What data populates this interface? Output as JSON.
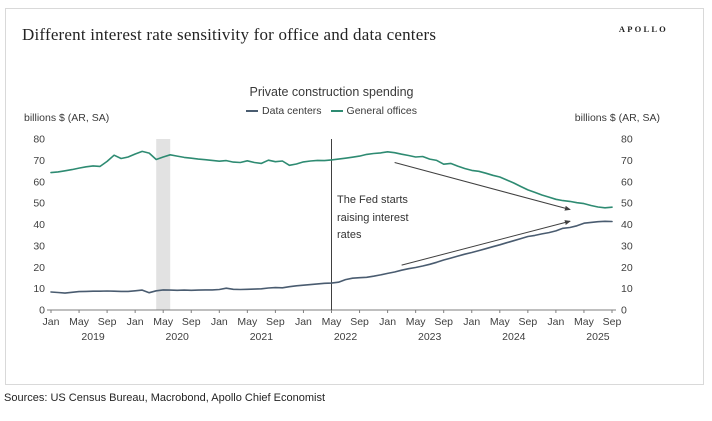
{
  "brand": "APOLLO",
  "page_title": "Different interest rate sensitivity for office and data centers",
  "sources": "Sources: US Census Bureau, Macrobond, Apollo Chief Economist",
  "colors": {
    "data_centers": "#4a5c70",
    "general_offices": "#2e8b72",
    "recession_band": "#e2e2e2",
    "axis": "#7f7f7f",
    "annotation_ink": "#404040"
  },
  "chart_data": {
    "type": "line",
    "title": "Private construction spending",
    "y_axis_label_left": "billions $ (AR, SA)",
    "y_axis_label_right": "billions $ (AR, SA)",
    "ylim": [
      0,
      80
    ],
    "y_ticks": [
      0,
      10,
      20,
      30,
      40,
      50,
      60,
      70,
      80
    ],
    "x_range": "Jan 2019 - Sep 2025",
    "month_tick_labels": [
      "Jan",
      "May",
      "Sep"
    ],
    "years": [
      "2019",
      "2020",
      "2021",
      "2022",
      "2023",
      "2024",
      "2025"
    ],
    "legend_position": "top-center",
    "grid": false,
    "annotation": {
      "lines": [
        "The Fed starts",
        "raising interest",
        "rates"
      ],
      "fed_line_month_index": 40,
      "recession_band": {
        "from_index": 15,
        "to_index": 17
      },
      "arrows": [
        {
          "from_month": 49,
          "from_value": 69,
          "to_month": 74,
          "to_value": 47
        },
        {
          "from_month": 50,
          "from_value": 21,
          "to_month": 74,
          "to_value": 41.5
        }
      ]
    },
    "series": [
      {
        "name": "Data centers",
        "color": "#4a5c70",
        "values": [
          8.4,
          8.2,
          7.9,
          8.3,
          8.6,
          8.7,
          8.8,
          8.8,
          8.9,
          8.8,
          8.7,
          8.7,
          9.0,
          9.3,
          8.1,
          9.0,
          9.4,
          9.3,
          9.2,
          9.3,
          9.2,
          9.3,
          9.4,
          9.4,
          9.6,
          10.2,
          9.7,
          9.6,
          9.7,
          9.8,
          9.9,
          10.3,
          10.5,
          10.4,
          10.9,
          11.3,
          11.6,
          11.9,
          12.2,
          12.5,
          12.6,
          13.0,
          14.2,
          14.9,
          15.1,
          15.3,
          15.8,
          16.4,
          17.1,
          17.8,
          18.6,
          19.3,
          19.9,
          20.6,
          21.4,
          22.3,
          23.4,
          24.3,
          25.2,
          26.1,
          26.9,
          27.8,
          28.7,
          29.6,
          30.5,
          31.5,
          32.4,
          33.4,
          34.4,
          34.9,
          35.6,
          36.2,
          37.0,
          38.2,
          38.6,
          39.4,
          40.6,
          41.0,
          41.3,
          41.5,
          41.4
        ]
      },
      {
        "name": "General offices",
        "color": "#2e8b72",
        "values": [
          64.3,
          64.6,
          65.1,
          65.7,
          66.4,
          67.0,
          67.4,
          67.2,
          69.5,
          72.4,
          70.9,
          71.6,
          73.0,
          74.2,
          73.4,
          70.4,
          71.6,
          72.6,
          72.0,
          71.4,
          71.0,
          70.6,
          70.3,
          70.0,
          69.6,
          69.9,
          69.2,
          69.0,
          69.8,
          69.0,
          68.6,
          70.1,
          69.4,
          69.7,
          67.7,
          68.3,
          69.3,
          69.7,
          70.0,
          69.9,
          70.2,
          70.6,
          71.0,
          71.5,
          72.0,
          72.8,
          73.2,
          73.5,
          74.0,
          73.6,
          72.9,
          72.3,
          71.6,
          71.8,
          70.6,
          70.0,
          68.2,
          68.6,
          67.3,
          66.2,
          65.3,
          64.9,
          64.0,
          63.0,
          62.2,
          60.8,
          59.4,
          57.8,
          56.2,
          55.0,
          53.8,
          52.8,
          51.8,
          51.2,
          50.8,
          50.2,
          49.8,
          48.9,
          48.2,
          47.8,
          48.1
        ]
      }
    ]
  }
}
